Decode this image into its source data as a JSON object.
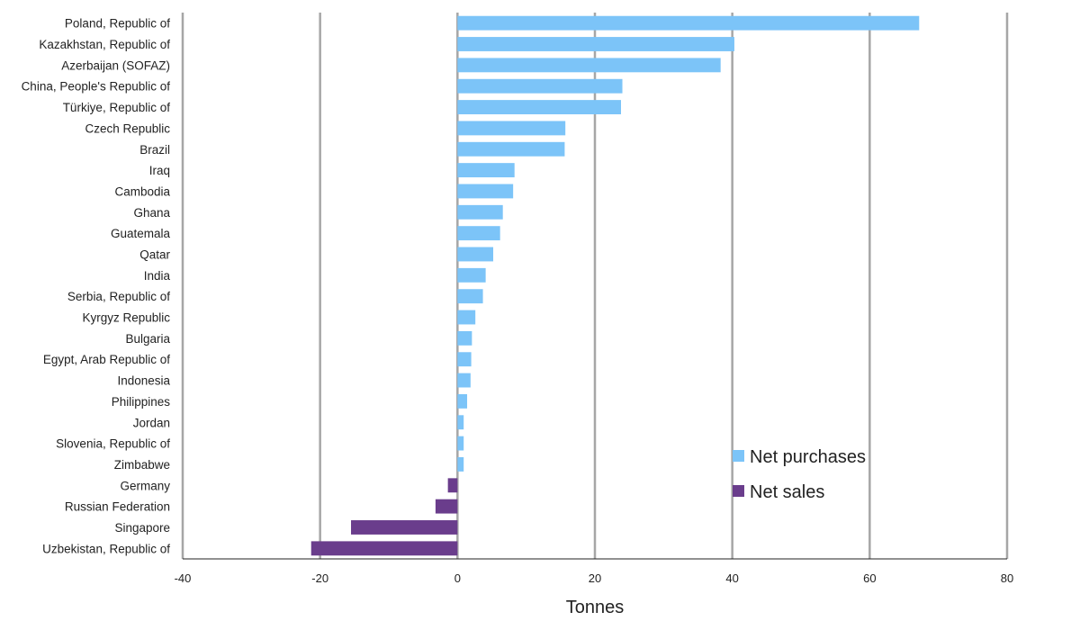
{
  "chart_data": {
    "type": "bar",
    "orientation": "horizontal",
    "xlabel": "Tonnes",
    "xlim": [
      -40,
      80
    ],
    "xticks": [
      -40,
      -20,
      0,
      20,
      40,
      60,
      80
    ],
    "grid": "vertical",
    "legend_position": "bottom-right",
    "colors": {
      "Net purchases": "#7cc4f8",
      "Net sales": "#6a3d8c",
      "grid": "#a6a6a6"
    },
    "legend": [
      "Net purchases",
      "Net sales"
    ],
    "categories": [
      "Poland, Republic of",
      "Kazakhstan, Republic of",
      "Azerbaijan (SOFAZ)",
      "China, People's Republic of",
      "Türkiye, Republic of",
      "Czech Republic",
      "Brazil",
      "Iraq",
      "Cambodia",
      "Ghana",
      "Guatemala",
      "Qatar",
      "India",
      "Serbia, Republic of",
      "Kyrgyz Republic",
      "Bulgaria",
      "Egypt, Arab Republic of",
      "Indonesia",
      "Philippines",
      "Jordan",
      "Slovenia, Republic of",
      "Zimbabwe",
      "Germany",
      "Russian Federation",
      "Singapore",
      "Uzbekistan, Republic of"
    ],
    "values": [
      67.2,
      40.3,
      38.3,
      24.0,
      23.8,
      15.7,
      15.6,
      8.3,
      8.1,
      6.6,
      6.2,
      5.2,
      4.1,
      3.7,
      2.6,
      2.1,
      2.0,
      1.9,
      1.4,
      0.9,
      0.9,
      0.9,
      -1.4,
      -3.2,
      -15.5,
      -21.3
    ]
  }
}
